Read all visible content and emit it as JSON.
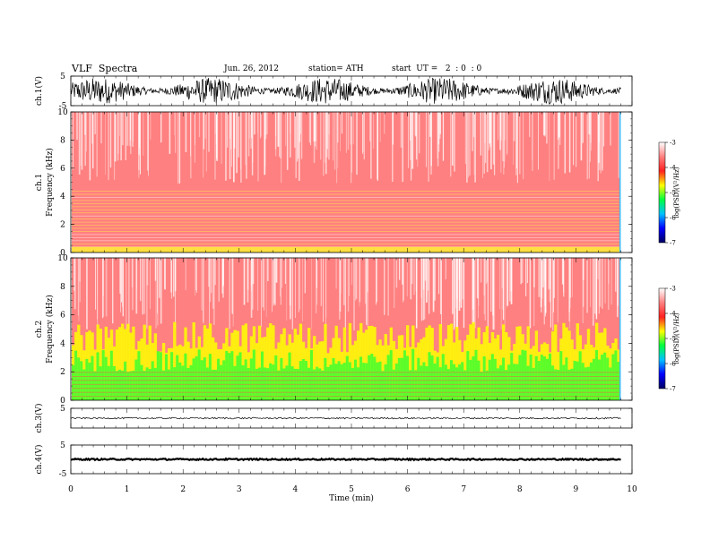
{
  "header": {
    "title": "VLF  Spectra",
    "date": "Jun. 26, 2012",
    "station": "station= ATH",
    "start": "start  UT =   2  : 0  : 0"
  },
  "colors": {
    "axis": "#000000",
    "spectrogram_background": "#ff3030",
    "colorbar_stops": [
      "#ffffff",
      "#ff8080",
      "#ff2020",
      "#ffff00",
      "#00ff40",
      "#00c0ff",
      "#0000ff",
      "#000060"
    ]
  },
  "chart_data": [
    {
      "type": "line",
      "name": "ch1-waveform",
      "ylabel": "ch.1(V)",
      "ylim": [
        -5,
        5
      ],
      "y_ticks": [
        "5",
        "-5"
      ],
      "xlim": [
        0,
        10
      ],
      "data_end_min": 9.8,
      "amplitude_description": "dense noise filling most of the +/-5 V range",
      "amplitude_envelope_V": 4.5
    },
    {
      "type": "heatmap",
      "name": "ch1-spectrogram",
      "ylabel_lines": [
        "ch.1",
        "Frequency  (kHz)"
      ],
      "ylim": [
        0,
        10
      ],
      "y_ticks": [
        "0",
        "2",
        "4",
        "6",
        "8",
        "10"
      ],
      "xlim": [
        0,
        10
      ],
      "data_end_min": 9.8,
      "colorbar": {
        "label": "log(PSD)(V²/Hz)",
        "range": [
          -7,
          -3
        ],
        "ticks": [
          "-3",
          "-4",
          "-5",
          "-6",
          "-7"
        ]
      },
      "dominant_level": -3.8,
      "banded_region_kHz": [
        0.2,
        4.5
      ],
      "green_band_top_kHz": 0.4
    },
    {
      "type": "heatmap",
      "name": "ch2-spectrogram",
      "ylabel_lines": [
        "ch.2",
        "Frequency  (kHz)"
      ],
      "ylim": [
        0,
        10
      ],
      "y_ticks": [
        "0",
        "2",
        "4",
        "6",
        "8",
        "10"
      ],
      "xlim": [
        0,
        10
      ],
      "data_end_min": 9.8,
      "colorbar": {
        "label": "log(PSD)(V²/Hz)",
        "range": [
          -7,
          -3
        ],
        "ticks": [
          "-3",
          "-4",
          "-5",
          "-6",
          "-7"
        ]
      },
      "dominant_level": -3.8,
      "green_band_top_kHz": 3.0,
      "yellow_band_top_kHz": 4.5
    },
    {
      "type": "line",
      "name": "ch3-waveform",
      "ylabel": "ch.3(V)",
      "ylim": [
        -5,
        5
      ],
      "y_ticks": [
        "5"
      ],
      "xlim": [
        0,
        10
      ],
      "data_end_min": 9.8,
      "level_V": 0,
      "amplitude_envelope_V": 0.4
    },
    {
      "type": "line",
      "name": "ch4-waveform",
      "ylabel": "ch.4(V)",
      "ylim": [
        -5,
        5
      ],
      "y_ticks": [
        "5",
        "-5"
      ],
      "xlim": [
        0,
        10
      ],
      "data_end_min": 9.8,
      "level_V": 0,
      "amplitude_envelope_V": 0.25
    }
  ],
  "x_axis": {
    "label": "Time  (min)",
    "ticks": [
      "0",
      "1",
      "2",
      "3",
      "4",
      "5",
      "6",
      "7",
      "8",
      "9",
      "10"
    ],
    "range": [
      0,
      10
    ]
  }
}
